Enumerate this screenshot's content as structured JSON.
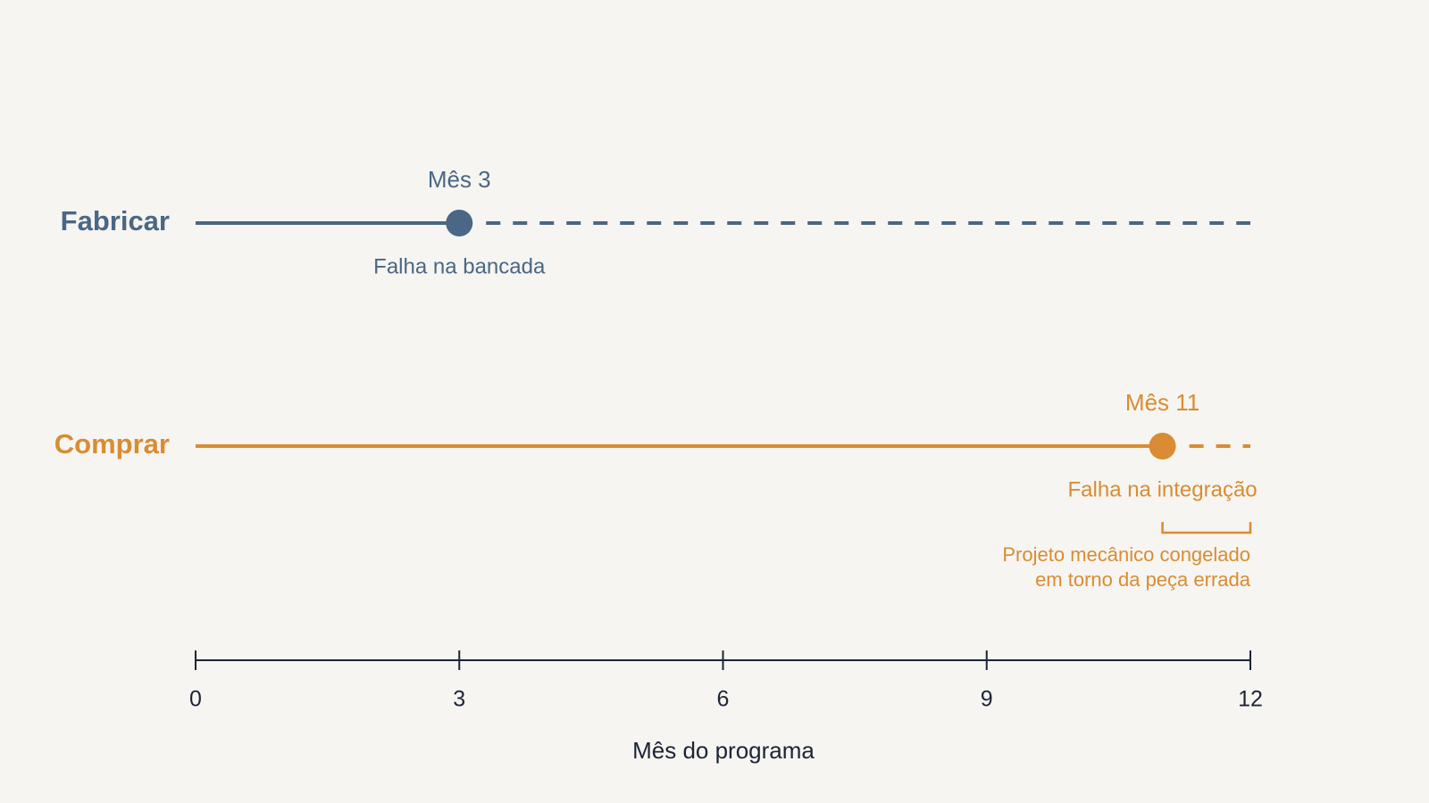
{
  "chart_data": {
    "type": "timeline",
    "categories": [
      "Fabricar",
      "Comprar"
    ],
    "values": [
      3,
      11
    ],
    "value_labels": [
      "Mês 3",
      "Mês 11"
    ],
    "event_labels": [
      "Falha na bancada",
      "Falha na integração"
    ],
    "colors": [
      "#4a6785",
      "#d98c33"
    ],
    "annotation": {
      "text": [
        "Projeto mecânico congelado",
        "em torno da peça errada"
      ],
      "x": [
        11,
        12
      ],
      "color": "#d98c33"
    },
    "xlabel": "Mês do programa",
    "xlim": [
      0,
      12
    ],
    "xticks": [
      0,
      3,
      6,
      9,
      12
    ]
  }
}
